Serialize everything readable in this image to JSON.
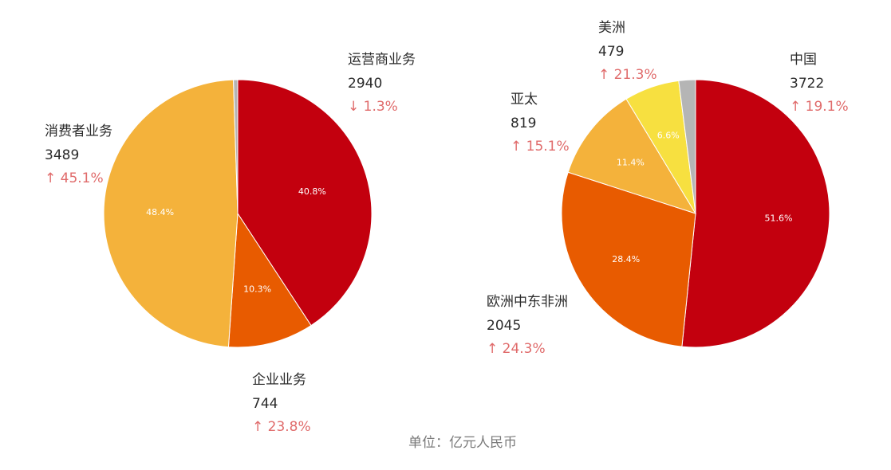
{
  "unit_note": "单位：亿元人民币",
  "chart_data": [
    {
      "type": "pie",
      "title": "",
      "start_angle_deg": 0,
      "slices": [
        {
          "name": "运营商业务",
          "value": 2940,
          "percent_label": "40.8%",
          "change": "↓ 1.3%",
          "color": "#c3000e"
        },
        {
          "name": "企业业务",
          "value": 744,
          "percent_label": "10.3%",
          "change": "↑ 23.8%",
          "color": "#e85b00"
        },
        {
          "name": "消费者业务",
          "value": 3489,
          "percent_label": "48.4%",
          "change": "↑ 45.1%",
          "color": "#f4b23b"
        },
        {
          "name": "",
          "value": 37,
          "percent_label": "",
          "change": "",
          "color": "#b5b5b5"
        }
      ]
    },
    {
      "type": "pie",
      "title": "",
      "start_angle_deg": 0,
      "slices": [
        {
          "name": "中国",
          "value": 3722,
          "percent_label": "51.6%",
          "change": "↑ 19.1%",
          "color": "#c3000e"
        },
        {
          "name": "欧洲中东非洲",
          "value": 2045,
          "percent_label": "28.4%",
          "change": "↑ 24.3%",
          "color": "#e85b00"
        },
        {
          "name": "亚太",
          "value": 819,
          "percent_label": "11.4%",
          "change": "↑ 15.1%",
          "color": "#f4b23b"
        },
        {
          "name": "美洲",
          "value": 479,
          "percent_label": "6.6%",
          "change": "↑ 21.3%",
          "color": "#f7e040"
        },
        {
          "name": "",
          "value": 145,
          "percent_label": "",
          "change": "",
          "color": "#b5b5b5"
        }
      ]
    }
  ]
}
